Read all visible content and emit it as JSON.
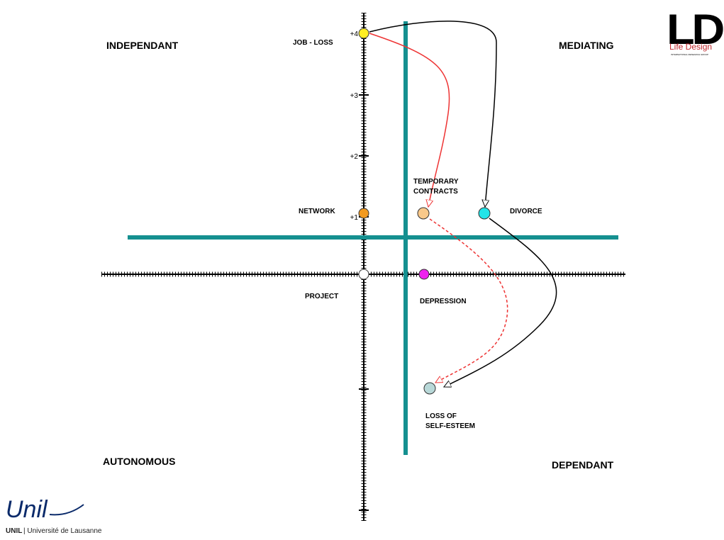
{
  "quadrants": {
    "top_left": "INDEPENDANT",
    "top_right": "MEDIATING",
    "bottom_left": "AUTONOMOUS",
    "bottom_right": "DEPENDANT"
  },
  "axis_ticks": [
    "+4",
    "+3",
    "+2",
    "+1"
  ],
  "nodes": [
    {
      "label": [
        "JOB - LOSS"
      ]
    },
    {
      "label": [
        "NETWORK"
      ]
    },
    {
      "label": [
        "PROJECT"
      ]
    },
    {
      "label": [
        "TEMPORARY",
        "CONTRACTS"
      ]
    },
    {
      "label": [
        "DIVORCE"
      ]
    },
    {
      "label": [
        "DEPRESSION"
      ]
    },
    {
      "label": [
        "LOSS OF",
        "SELF-ESTEEM"
      ]
    }
  ],
  "logo_ld": {
    "mark": "LD",
    "name": "Life Design",
    "tagline": "INTERNATIONAL RESEARCH GROUP"
  },
  "logo_unil": {
    "mark": "Unil",
    "name_bold": "UNIL",
    "name": "| Université de Lausanne"
  }
}
